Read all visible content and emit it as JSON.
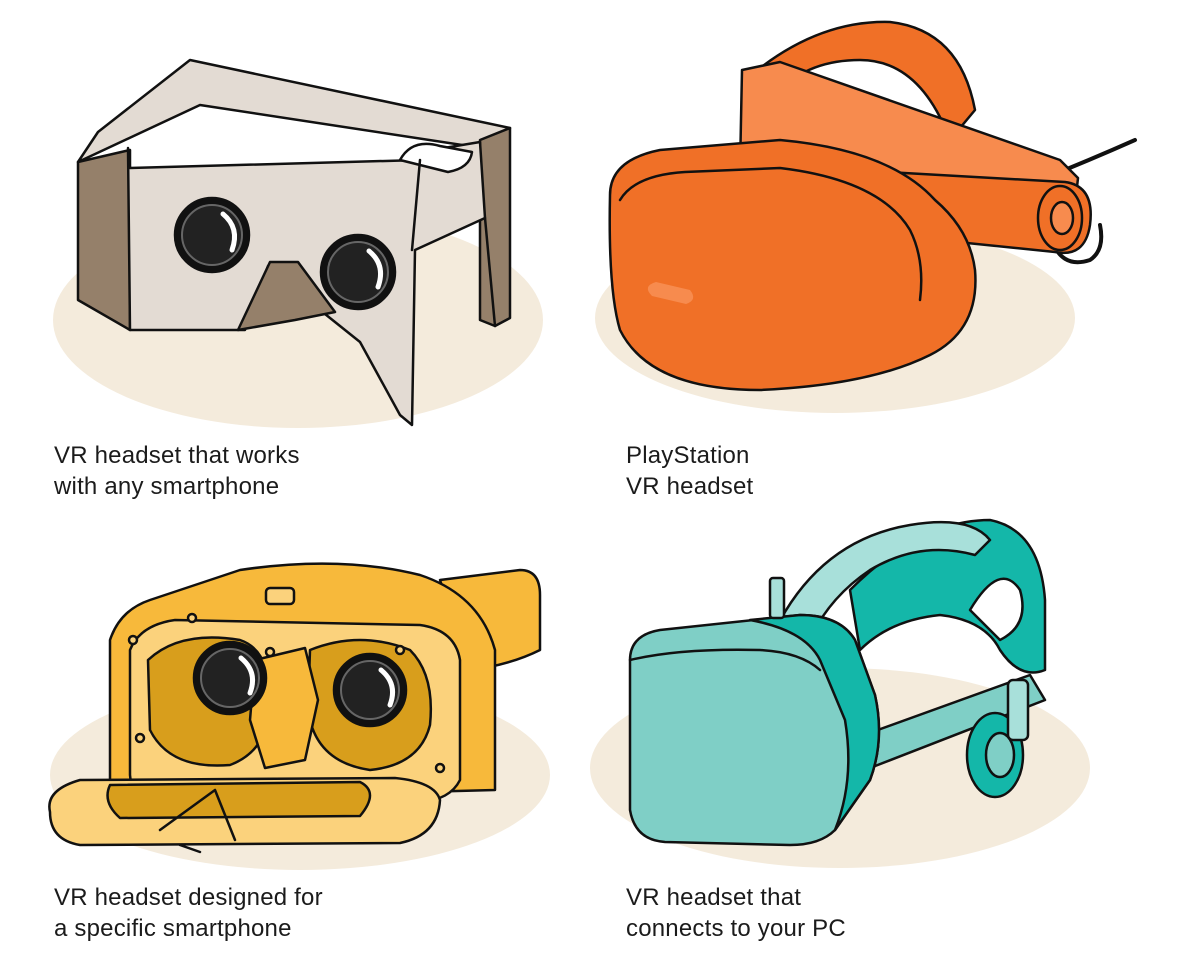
{
  "colors": {
    "background": "#ffffff",
    "floor_shadow": "#f4ebdc",
    "outline": "#111111",
    "cardboard_light": "#e3dbd3",
    "cardboard_dark": "#95806a",
    "playstation_orange": "#f07027",
    "playstation_orange_light": "#f78b4e",
    "daydream_yellow": "#f7b93b",
    "daydream_yellow_light": "#fbd27c",
    "daydream_yellow_dark": "#d89e1c",
    "rift_teal": "#7fcfc6",
    "rift_teal_dark": "#14b7a9",
    "rift_teal_light": "#a8e0da"
  },
  "headsets": [
    {
      "name": "cardboard",
      "icon": "cardboard-headset-icon",
      "caption_lines": [
        "VR headset that works",
        "with any smartphone"
      ]
    },
    {
      "name": "playstation",
      "icon": "playstation-vr-headset-icon",
      "caption_lines": [
        "PlayStation",
        "VR headset"
      ]
    },
    {
      "name": "daydream",
      "icon": "daydream-headset-icon",
      "caption_lines": [
        "VR headset designed for",
        "a specific smartphone"
      ]
    },
    {
      "name": "rift",
      "icon": "pc-vr-headset-icon",
      "caption_lines": [
        "VR headset that",
        "connects to your PC"
      ]
    }
  ]
}
